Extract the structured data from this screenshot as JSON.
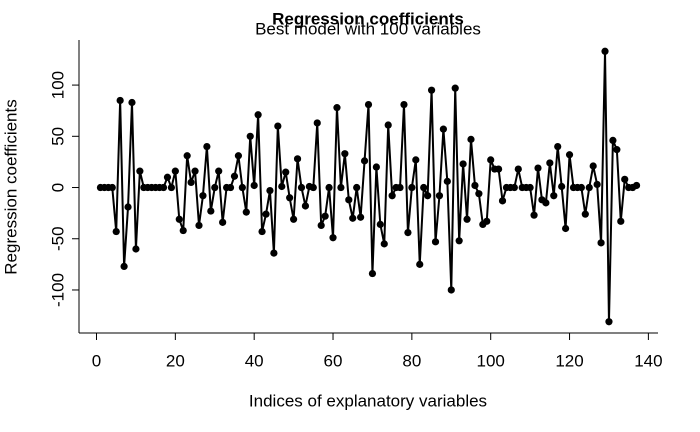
{
  "chart_data": {
    "type": "line",
    "title": "Regression coefficients",
    "subtitle": "Best model with 100 variables",
    "x_label": "Indices of explanatory variables",
    "y_label": "Regression coefficients",
    "x": [
      1,
      2,
      3,
      4,
      5,
      6,
      7,
      8,
      9,
      10,
      11,
      12,
      13,
      14,
      15,
      16,
      17,
      18,
      19,
      20,
      21,
      22,
      23,
      24,
      25,
      26,
      27,
      28,
      29,
      30,
      31,
      32,
      33,
      34,
      35,
      36,
      37,
      38,
      39,
      40,
      41,
      42,
      43,
      44,
      45,
      46,
      47,
      48,
      49,
      50,
      51,
      52,
      53,
      54,
      55,
      56,
      57,
      58,
      59,
      60,
      61,
      62,
      63,
      64,
      65,
      66,
      67,
      68,
      69,
      70,
      71,
      72,
      73,
      74,
      75,
      76,
      77,
      78,
      79,
      80,
      81,
      82,
      83,
      84,
      85,
      86,
      87,
      88,
      89,
      90,
      91,
      92,
      93,
      94,
      95,
      96,
      97,
      98,
      99,
      100,
      101,
      102,
      103,
      104,
      105,
      106,
      107,
      108,
      109,
      110,
      111,
      112,
      113,
      114,
      115,
      116,
      117,
      118,
      119,
      120,
      121,
      122,
      123,
      124,
      125,
      126,
      127,
      128,
      129,
      130,
      131,
      132,
      133,
      134,
      135,
      136,
      137
    ],
    "series": [
      {
        "color": "#000000",
        "values": [
          0,
          0,
          0,
          0,
          -43,
          85,
          -77,
          -19,
          83,
          -60,
          16,
          0,
          0,
          0,
          0,
          0,
          0,
          10,
          0,
          16,
          -31,
          -42,
          31,
          5,
          16,
          -37,
          -8,
          40,
          -23,
          0,
          16,
          -34,
          0,
          0,
          11,
          31,
          0,
          -24,
          50,
          2,
          71,
          -43,
          -26,
          -3,
          -64,
          60,
          1,
          15,
          -10,
          -31,
          28,
          0,
          -18,
          1,
          0,
          63,
          -37,
          -28,
          0,
          -49,
          78,
          0,
          33,
          -12,
          -30,
          0,
          -29,
          26,
          81,
          -84,
          20,
          -36,
          -55,
          61,
          -8,
          0,
          0,
          81,
          -44,
          0,
          27,
          -75,
          0,
          -8,
          95,
          -53,
          -8,
          57,
          6,
          -100,
          97,
          -52,
          23,
          -31,
          47,
          2,
          -6,
          -36,
          -33,
          27,
          18,
          18,
          -13,
          0,
          0,
          0,
          18,
          0,
          0,
          0,
          -27,
          19,
          -12,
          -15,
          24,
          -8,
          40,
          1,
          -40,
          32,
          0,
          0,
          0,
          -26,
          0,
          21,
          3,
          -54,
          133,
          -131,
          46,
          37,
          -33,
          8,
          0,
          0,
          2
        ]
      }
    ],
    "xlim": [
      -4.44,
      142.44
    ],
    "ylim": [
      -142,
      144
    ],
    "xticks": [
      0,
      20,
      40,
      60,
      80,
      100,
      120,
      140
    ],
    "yticks": [
      -100,
      -50,
      0,
      50,
      100
    ],
    "markers": true
  }
}
